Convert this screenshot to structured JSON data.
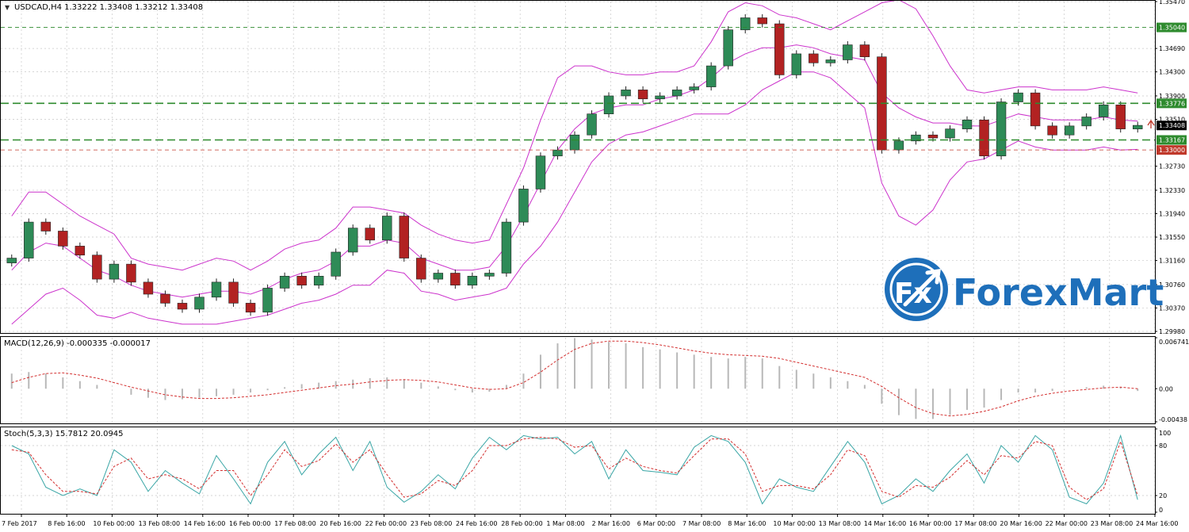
{
  "header": {
    "title": "USDCAD,H4  1.33222 1.33408 1.33212 1.33408",
    "macd_label": "MACD(12,26,9) -0.000335 -0.000017",
    "stoch_label": "Stoch(5,3,3) 15.7812 20.0945"
  },
  "logo": {
    "text": "ForexMart",
    "glyph": "Fx",
    "icon": "forexmart-logo-icon"
  },
  "colors": {
    "bull": "#2e8b57",
    "bear": "#b22222",
    "bollinger": "#cc33cc",
    "level_green": "#2e8b2e",
    "level_red": "#c0392b",
    "signal": "#d32f2f",
    "stoch_main": "#3aa6a6",
    "grid": "#c8c8c8",
    "logo_blue": "#1e6fba"
  },
  "chart_data": [
    {
      "type": "line",
      "title": "USDCAD,H4",
      "ohlc_header": {
        "open": 1.33222,
        "high": 1.33408,
        "low": 1.33212,
        "close": 1.33408
      },
      "ylim": [
        1.2998,
        1.3547
      ],
      "y_ticks": [
        "1.35470",
        "1.34690",
        "1.34300",
        "1.33900",
        "1.33510",
        "1.32730",
        "1.32330",
        "1.31940",
        "1.31550",
        "1.31160",
        "1.30760",
        "1.30370",
        "1.29980"
      ],
      "x_tick_labels": [
        "7 Feb 2017",
        "8 Feb 16:00",
        "10 Feb 00:00",
        "13 Feb 08:00",
        "14 Feb 16:00",
        "16 Feb 00:00",
        "17 Feb 08:00",
        "20 Feb 16:00",
        "22 Feb 00:00",
        "23 Feb 08:00",
        "24 Feb 16:00",
        "28 Feb 00:00",
        "1 Mar 08:00",
        "2 Mar 16:00",
        "6 Mar 00:00",
        "7 Mar 08:00",
        "8 Mar 16:00",
        "10 Mar 00:00",
        "13 Mar 08:00",
        "14 Mar 16:00",
        "16 Mar 00:00",
        "17 Mar 08:00",
        "20 Mar 16:00",
        "22 Mar 00:00",
        "23 Mar 08:00",
        "24 Mar 16:00"
      ],
      "close_path": [
        1.312,
        1.318,
        1.3165,
        1.314,
        1.3125,
        1.3085,
        1.311,
        1.308,
        1.306,
        1.3045,
        1.3035,
        1.3055,
        1.308,
        1.3045,
        1.303,
        1.307,
        1.309,
        1.3075,
        1.309,
        1.313,
        1.317,
        1.315,
        1.319,
        1.312,
        1.3085,
        1.3095,
        1.3075,
        1.309,
        1.3095,
        1.318,
        1.3235,
        1.329,
        1.33,
        1.3325,
        1.336,
        1.339,
        1.34,
        1.3385,
        1.339,
        1.34,
        1.3405,
        1.344,
        1.35,
        1.352,
        1.351,
        1.3425,
        1.346,
        1.3445,
        1.345,
        1.3475,
        1.3455,
        1.33,
        1.3315,
        1.3325,
        1.332,
        1.3335,
        1.335,
        1.329,
        1.338,
        1.3395,
        1.334,
        1.3325,
        1.334,
        1.3355,
        1.3375,
        1.3335,
        1.3341
      ],
      "bollinger": {
        "upper": [
          1.319,
          1.323,
          1.323,
          1.321,
          1.319,
          1.3175,
          1.316,
          1.312,
          1.311,
          1.3105,
          1.31,
          1.311,
          1.312,
          1.3115,
          1.31,
          1.3115,
          1.3135,
          1.3145,
          1.315,
          1.317,
          1.3205,
          1.3205,
          1.32,
          1.3195,
          1.3175,
          1.316,
          1.315,
          1.3145,
          1.315,
          1.321,
          1.327,
          1.335,
          1.342,
          1.344,
          1.344,
          1.343,
          1.3425,
          1.3425,
          1.343,
          1.343,
          1.344,
          1.348,
          1.353,
          1.3545,
          1.354,
          1.3525,
          1.352,
          1.351,
          1.35,
          1.3515,
          1.353,
          1.3545,
          1.355,
          1.3535,
          1.349,
          1.344,
          1.34,
          1.3395,
          1.34,
          1.3405,
          1.3405,
          1.34,
          1.34,
          1.34,
          1.3405,
          1.34,
          1.3395
        ],
        "middle": [
          1.31,
          1.313,
          1.3145,
          1.314,
          1.312,
          1.31,
          1.309,
          1.3075,
          1.3065,
          1.306,
          1.3055,
          1.306,
          1.3065,
          1.3065,
          1.306,
          1.307,
          1.3085,
          1.3095,
          1.31,
          1.3115,
          1.314,
          1.314,
          1.315,
          1.3145,
          1.312,
          1.311,
          1.31,
          1.31,
          1.3105,
          1.314,
          1.319,
          1.3245,
          1.33,
          1.3335,
          1.336,
          1.337,
          1.3375,
          1.3375,
          1.3385,
          1.339,
          1.34,
          1.342,
          1.3445,
          1.346,
          1.347,
          1.347,
          1.3475,
          1.347,
          1.346,
          1.3455,
          1.345,
          1.3395,
          1.337,
          1.3355,
          1.3345,
          1.3345,
          1.334,
          1.334,
          1.335,
          1.336,
          1.3355,
          1.335,
          1.335,
          1.335,
          1.3355,
          1.335,
          1.3348
        ],
        "lower": [
          1.301,
          1.3035,
          1.306,
          1.307,
          1.305,
          1.3025,
          1.302,
          1.303,
          1.302,
          1.3015,
          1.301,
          1.301,
          1.301,
          1.3015,
          1.302,
          1.3025,
          1.3035,
          1.3045,
          1.305,
          1.306,
          1.3075,
          1.3075,
          1.31,
          1.3095,
          1.3065,
          1.306,
          1.305,
          1.3055,
          1.306,
          1.307,
          1.311,
          1.314,
          1.318,
          1.323,
          1.328,
          1.331,
          1.3325,
          1.333,
          1.334,
          1.335,
          1.336,
          1.336,
          1.336,
          1.3375,
          1.34,
          1.3415,
          1.343,
          1.343,
          1.342,
          1.3395,
          1.337,
          1.3245,
          1.319,
          1.3175,
          1.32,
          1.325,
          1.328,
          1.3285,
          1.33,
          1.3315,
          1.3305,
          1.33,
          1.33,
          1.33,
          1.3305,
          1.33,
          1.3301
        ]
      },
      "levels": [
        {
          "value": 1.3504,
          "label": "1.35040",
          "style": "thin",
          "color": "level_green"
        },
        {
          "value": 1.33776,
          "label": "1.33776",
          "style": "dashed",
          "color": "level_green"
        },
        {
          "value": 1.33408,
          "label": "1.33408",
          "style": "price",
          "color": "dark"
        },
        {
          "value": 1.33167,
          "label": "1.33167",
          "style": "dashed",
          "color": "level_green"
        },
        {
          "value": 1.33,
          "label": "1.33000",
          "style": "thin",
          "color": "level_red"
        }
      ]
    },
    {
      "type": "bar",
      "title": "MACD(12,26,9)",
      "main": -0.000335,
      "signal_value": -1.7e-05,
      "ylim": [
        -0.00438,
        0.006741
      ],
      "y_ticks": [
        "0.006741",
        "0.00",
        "-0.00438"
      ],
      "histogram": [
        0.002,
        0.0022,
        0.002,
        0.0015,
        0.001,
        0.0005,
        0.0,
        -0.0008,
        -0.0012,
        -0.0015,
        -0.0014,
        -0.0012,
        -0.001,
        -0.0008,
        -0.0005,
        -0.0002,
        0.0002,
        0.0006,
        0.0008,
        0.001,
        0.0012,
        0.0014,
        0.0015,
        0.0012,
        0.0008,
        0.0003,
        -0.0002,
        -0.0005,
        -0.0004,
        0.0005,
        0.002,
        0.0045,
        0.006,
        0.0067,
        0.0065,
        0.0062,
        0.006,
        0.0055,
        0.0052,
        0.0048,
        0.0045,
        0.0042,
        0.004,
        0.0042,
        0.004,
        0.003,
        0.0025,
        0.002,
        0.0015,
        0.001,
        0.0005,
        -0.002,
        -0.0035,
        -0.004,
        -0.004,
        -0.0035,
        -0.0028,
        -0.0025,
        -0.0015,
        -0.0005,
        -0.0005,
        -0.0003,
        0.0,
        0.0002,
        0.0004,
        0.0002,
        -0.0003
      ],
      "signal": [
        0.0008,
        0.0015,
        0.002,
        0.0021,
        0.0018,
        0.0014,
        0.0008,
        0.0002,
        -0.0003,
        -0.0008,
        -0.0011,
        -0.0013,
        -0.0013,
        -0.0012,
        -0.001,
        -0.0008,
        -0.0005,
        -0.0002,
        0.0001,
        0.0004,
        0.0006,
        0.0009,
        0.0011,
        0.0012,
        0.0011,
        0.0009,
        0.0005,
        0.0001,
        -0.0001,
        0.0,
        0.0008,
        0.0022,
        0.0038,
        0.0052,
        0.006,
        0.0063,
        0.0063,
        0.0061,
        0.0058,
        0.0054,
        0.005,
        0.0047,
        0.0045,
        0.0044,
        0.0043,
        0.004,
        0.0035,
        0.003,
        0.0025,
        0.002,
        0.0015,
        0.0003,
        -0.0012,
        -0.0025,
        -0.0033,
        -0.0036,
        -0.0034,
        -0.003,
        -0.0024,
        -0.0016,
        -0.001,
        -0.0006,
        -0.0003,
        -0.0001,
        0.0001,
        0.0002,
        0.0
      ]
    },
    {
      "type": "line",
      "title": "Stoch(5,3,3)",
      "main": 15.7812,
      "signal_value": 20.0945,
      "ylim": [
        0,
        100
      ],
      "y_ticks": [
        "100",
        "80",
        "20",
        "0"
      ],
      "k": [
        80,
        70,
        30,
        20,
        28,
        20,
        75,
        60,
        25,
        50,
        35,
        22,
        68,
        40,
        10,
        60,
        85,
        45,
        70,
        90,
        50,
        85,
        30,
        12,
        25,
        45,
        28,
        65,
        90,
        75,
        92,
        88,
        90,
        70,
        85,
        40,
        75,
        50,
        48,
        45,
        78,
        92,
        85,
        60,
        10,
        40,
        30,
        25,
        55,
        85,
        60,
        10,
        20,
        40,
        25,
        50,
        70,
        35,
        80,
        60,
        92,
        75,
        18,
        10,
        35,
        92,
        15
      ],
      "d": [
        75,
        72,
        45,
        25,
        25,
        22,
        55,
        65,
        40,
        45,
        40,
        28,
        50,
        50,
        20,
        45,
        75,
        55,
        62,
        82,
        60,
        75,
        45,
        18,
        22,
        38,
        32,
        50,
        80,
        80,
        88,
        90,
        88,
        78,
        80,
        52,
        65,
        55,
        50,
        47,
        68,
        88,
        88,
        70,
        25,
        32,
        32,
        28,
        45,
        75,
        68,
        25,
        18,
        32,
        30,
        42,
        62,
        45,
        68,
        65,
        85,
        80,
        30,
        15,
        28,
        85,
        20
      ]
    }
  ]
}
